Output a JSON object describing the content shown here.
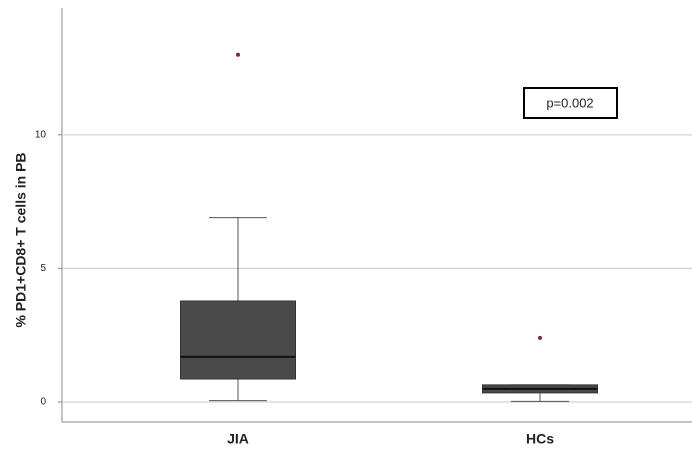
{
  "chart_data": {
    "type": "box",
    "y_label": "% PD1+CD8+ T cells in PB",
    "categories": [
      "JIA",
      "HCs"
    ],
    "boxes": [
      {
        "whisker_low": 0.05,
        "q1": 0.86,
        "median": 1.69,
        "q3": 3.78,
        "whisker_high": 6.9,
        "outliers": [
          13.0
        ]
      },
      {
        "whisker_low": 0.02,
        "q1": 0.34,
        "median": 0.49,
        "q3": 0.64,
        "whisker_high": 0.64,
        "outliers": [
          2.4
        ]
      }
    ],
    "color": "#4a4a4a",
    "outlier_color": "#7a2a2a",
    "ylim": [
      -0.75,
      14.75
    ],
    "yticks": [
      0,
      5,
      10
    ],
    "grid": true,
    "annotation": "p=0.002"
  }
}
